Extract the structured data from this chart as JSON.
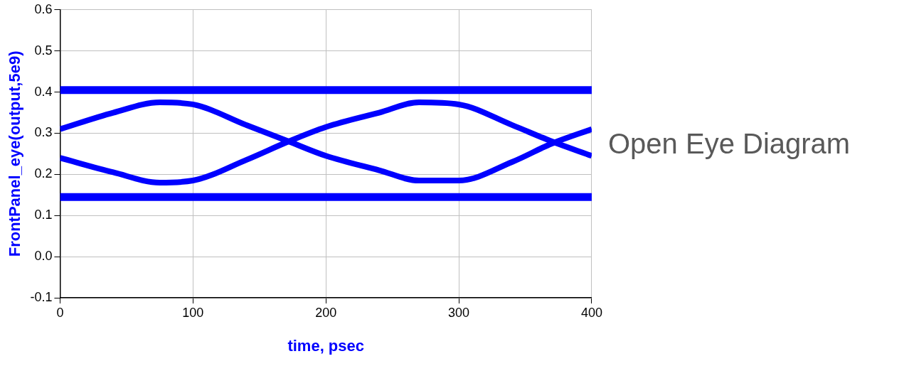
{
  "chart_data": {
    "type": "line",
    "xlabel": "time, psec",
    "ylabel": "FrontPanel_eye(output,5e9)",
    "xlim": [
      0,
      400
    ],
    "xticks": [
      0,
      100,
      200,
      300,
      400
    ],
    "ylim": [
      -0.1,
      0.6
    ],
    "yticks": [
      -0.1,
      {
        "value": 0,
        "label": "0.0"
      },
      0.1,
      0.2,
      0.3,
      0.4,
      0.5,
      0.6
    ],
    "grid": true,
    "marker": "none",
    "line_style": "solid",
    "annotations": [
      "Open Eye Diagram"
    ],
    "series": [
      {
        "color": "#0000ff",
        "x": [
          0,
          400
        ],
        "values": [
          0.405,
          0.405
        ]
      },
      {
        "color": "#0000ff",
        "x": [
          0,
          400
        ],
        "values": [
          0.145,
          0.145
        ]
      },
      {
        "color": "#0000ff",
        "x": [
          0,
          40,
          75,
          100,
          140,
          172,
          200,
          240,
          270,
          300,
          340,
          370,
          400
        ],
        "values": [
          0.31,
          0.35,
          0.375,
          0.37,
          0.32,
          0.28,
          0.245,
          0.21,
          0.185,
          0.185,
          0.23,
          0.275,
          0.31
        ]
      },
      {
        "color": "#0000ff",
        "x": [
          0,
          40,
          75,
          100,
          140,
          172,
          200,
          240,
          270,
          300,
          340,
          370,
          400
        ],
        "values": [
          0.24,
          0.205,
          0.18,
          0.185,
          0.235,
          0.28,
          0.315,
          0.35,
          0.375,
          0.37,
          0.32,
          0.28,
          0.245
        ]
      }
    ]
  }
}
